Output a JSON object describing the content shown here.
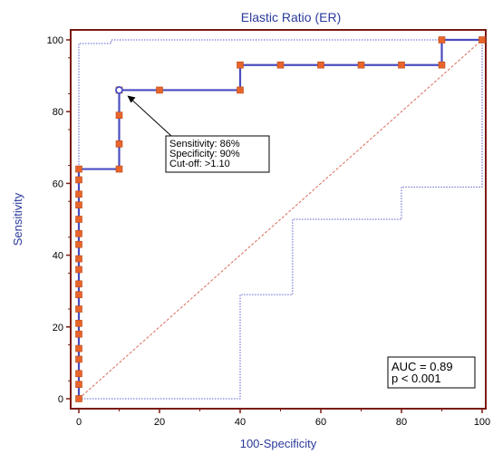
{
  "chart_data": {
    "type": "line",
    "title": "Elastic Ratio (ER)",
    "xlabel": "100-Specificity",
    "ylabel": "Sensitivity",
    "xlim": [
      0,
      100
    ],
    "ylim": [
      0,
      100
    ],
    "x_ticks": [
      "0",
      "20",
      "40",
      "60",
      "80",
      "100"
    ],
    "y_ticks": [
      "0",
      "20",
      "40",
      "60",
      "80",
      "100"
    ],
    "grid": false,
    "colors": {
      "frame": "#7b1a10",
      "roc": "#4b4cc0",
      "marker": "#e8642a",
      "ci": "#5a5fd0",
      "diagonal": "#d86a5a",
      "title": "#2a3a9a"
    },
    "series": [
      {
        "type": "roc-step",
        "values": [
          [
            0,
            0
          ],
          [
            0,
            4
          ],
          [
            0,
            7
          ],
          [
            0,
            11
          ],
          [
            0,
            14
          ],
          [
            0,
            18
          ],
          [
            0,
            21
          ],
          [
            0,
            25
          ],
          [
            0,
            29
          ],
          [
            0,
            32
          ],
          [
            0,
            36
          ],
          [
            0,
            39
          ],
          [
            0,
            43
          ],
          [
            0,
            46
          ],
          [
            0,
            50
          ],
          [
            0,
            54
          ],
          [
            0,
            57
          ],
          [
            0,
            61
          ],
          [
            0,
            64
          ],
          [
            10,
            64
          ],
          [
            10,
            71
          ],
          [
            10,
            79
          ],
          [
            10,
            86
          ],
          [
            20,
            86
          ],
          [
            40,
            86
          ],
          [
            40,
            93
          ],
          [
            50,
            93
          ],
          [
            60,
            93
          ],
          [
            70,
            93
          ],
          [
            80,
            93
          ],
          [
            90,
            93
          ],
          [
            90,
            100
          ],
          [
            100,
            100
          ]
        ]
      },
      {
        "type": "ci-upper",
        "values": [
          [
            0,
            0
          ],
          [
            0,
            99
          ],
          [
            8,
            99
          ],
          [
            8,
            100
          ],
          [
            100,
            100
          ]
        ]
      },
      {
        "type": "ci-lower",
        "values": [
          [
            0,
            0
          ],
          [
            40,
            0
          ],
          [
            40,
            29
          ],
          [
            53,
            29
          ],
          [
            53,
            50
          ],
          [
            80,
            50
          ],
          [
            80,
            59
          ],
          [
            100,
            59
          ],
          [
            100,
            100
          ]
        ]
      },
      {
        "type": "reference",
        "values": [
          [
            0,
            0
          ],
          [
            100,
            100
          ]
        ]
      }
    ],
    "highlight_point": {
      "x": 10,
      "y": 86
    },
    "annotation": {
      "lines": [
        "Sensitivity: 86%",
        "Specificity: 90%",
        "Cut-off: >1.10"
      ]
    },
    "stats_box": {
      "lines": [
        "AUC = 0.89",
        "p < 0.001"
      ]
    }
  }
}
